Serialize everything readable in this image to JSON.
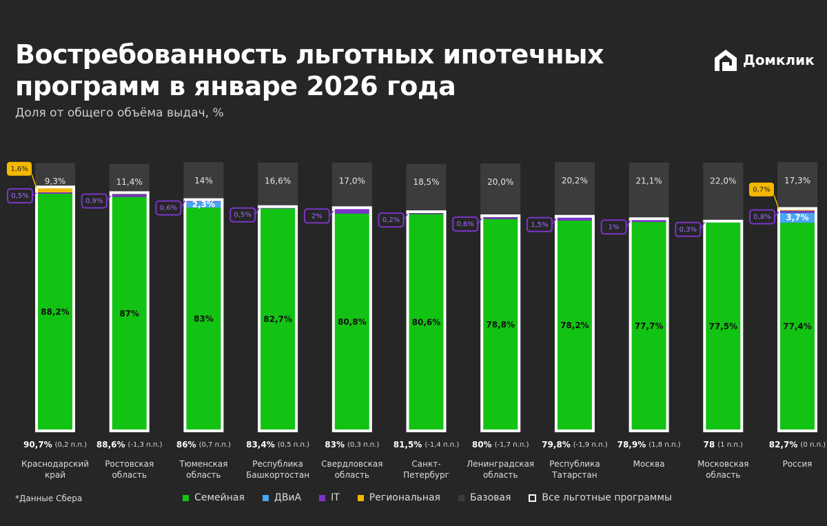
{
  "brand": "Домклик",
  "chart_data": {
    "type": "bar",
    "stacked": true,
    "title": "Востребованность льготных ипотечных\nпрограмм в январе 2026 года",
    "subtitle": "Доля от общего объёма выдач, %",
    "footnote": "*Данные Сбера",
    "categories": [
      "Краснодарский\nкрай",
      "Ростовская\nобласть",
      "Тюменская\nобласть",
      "Республика\nБашкортостан",
      "Свердловская\nобласть",
      "Санкт-\nПетербург",
      "Ленинградская\nобласть",
      "Республика\nТатарстан",
      "Москва",
      "Московская\nобласть",
      "Россия"
    ],
    "series": [
      {
        "name": "Семейная",
        "color": "#13c313",
        "values": [
          88.2,
          87,
          83,
          82.7,
          80.8,
          80.6,
          78.8,
          78.2,
          77.7,
          77.5,
          77.4
        ],
        "value_labels": [
          "88,2%",
          "87%",
          "83%",
          "82,7%",
          "80,8%",
          "80,6%",
          "78,8%",
          "78,2%",
          "77,7%",
          "77,5%",
          "77,4%"
        ]
      },
      {
        "name": "ДВиА",
        "color": "#49a6f0",
        "values": [
          null,
          null,
          2.3,
          null,
          null,
          null,
          null,
          null,
          null,
          null,
          3.7
        ],
        "value_labels": [
          null,
          null,
          "2,3%",
          null,
          null,
          null,
          null,
          null,
          null,
          null,
          "3,7%"
        ]
      },
      {
        "name": "IT",
        "color": "#7a35c8",
        "values": [
          0.5,
          0.9,
          0.6,
          0.5,
          2,
          0.2,
          0.6,
          1.5,
          1,
          0.3,
          0.8
        ],
        "value_labels": [
          "0,5%",
          "0,9%",
          "0,6%",
          "0,5%",
          "2%",
          "0,2%",
          "0,6%",
          "1,5%",
          "1%",
          "0,3%",
          "0,8%"
        ]
      },
      {
        "name": "Региональная",
        "color": "#f5b800",
        "values": [
          1.6,
          null,
          null,
          null,
          null,
          null,
          null,
          null,
          null,
          null,
          0.7
        ],
        "value_labels": [
          "1,6%",
          null,
          null,
          null,
          null,
          null,
          null,
          null,
          null,
          null,
          "0,7%"
        ]
      },
      {
        "name": "Базовая",
        "color": "#3c3c3c",
        "values": [
          9.3,
          11.4,
          14,
          16.6,
          17.0,
          18.5,
          20.0,
          20.2,
          21.1,
          22.0,
          17.3
        ],
        "value_labels": [
          "9,3%",
          "11,4%",
          "14%",
          "16,6%",
          "17,0%",
          "18,5%",
          "20,0%",
          "20,2%",
          "21,1%",
          "22,0%",
          "17,3%"
        ]
      }
    ],
    "total": {
      "name": "Все льготные программы",
      "color": "#ffffff",
      "values": [
        90.7,
        88.6,
        86,
        83.4,
        83,
        81.5,
        80,
        79.8,
        78.9,
        78,
        82.7
      ],
      "value_labels": [
        "90,7%",
        "88,6%",
        "86%",
        "83,4%",
        "83%",
        "81,5%",
        "80%",
        "79,8%",
        "78,9%",
        "78",
        "82,7%"
      ],
      "changes": [
        0.2,
        -1.3,
        0.7,
        0.5,
        0.3,
        -1.4,
        -1.7,
        -1.9,
        1.8,
        1,
        0
      ],
      "change_labels": [
        "(0,2 п.п.)",
        "(-1,3 п.п.)",
        "(0,7 п.п.)",
        "(0,5 п.п.)",
        "(0,3 п.п.)",
        "(-1,4 п.п.)",
        "(-1,7 п.п.)",
        "(-1,9 п.п.)",
        "(1,8 п.п.)",
        "(1 п.п.)",
        "(0 п.п.)"
      ]
    }
  }
}
